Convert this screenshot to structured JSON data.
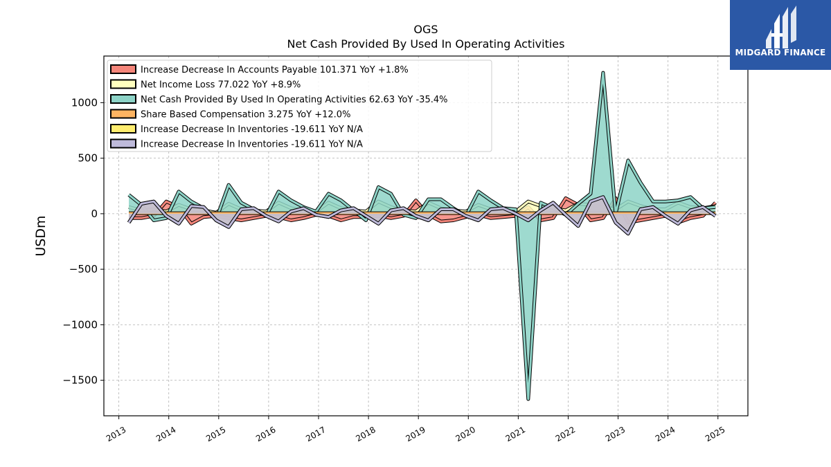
{
  "brand": {
    "name": "MIDGARD FINANCE"
  },
  "chart_data": {
    "type": "area",
    "title": "OGS",
    "subtitle": "Net Cash Provided By Used In Operating Activities",
    "xlabel": "",
    "ylabel": "USDm",
    "xlim": [
      2012.7,
      2025.6
    ],
    "ylim": [
      -1820,
      1420
    ],
    "yticks": [
      1000,
      500,
      0,
      -500,
      -1000,
      -1500
    ],
    "ytick_labels": [
      "1000",
      "500",
      "0",
      "−500",
      "−1000",
      "−1500"
    ],
    "xticks": [
      2013,
      2014,
      2015,
      2016,
      2017,
      2018,
      2019,
      2020,
      2021,
      2022,
      2023,
      2024,
      2025
    ],
    "xtick_labels": [
      "2013",
      "2014",
      "2015",
      "2016",
      "2017",
      "2018",
      "2019",
      "2020",
      "2021",
      "2022",
      "2023",
      "2024",
      "2025"
    ],
    "grid": true,
    "legend_position": "top-left",
    "x": [
      2013.2,
      2013.45,
      2013.7,
      2013.95,
      2014.2,
      2014.45,
      2014.7,
      2014.95,
      2015.2,
      2015.45,
      2015.7,
      2015.95,
      2016.2,
      2016.45,
      2016.7,
      2016.95,
      2017.2,
      2017.45,
      2017.7,
      2017.95,
      2018.2,
      2018.45,
      2018.7,
      2018.95,
      2019.2,
      2019.45,
      2019.7,
      2019.95,
      2020.2,
      2020.45,
      2020.7,
      2020.95,
      2021.2,
      2021.45,
      2021.7,
      2021.95,
      2022.2,
      2022.45,
      2022.7,
      2022.95,
      2023.2,
      2023.45,
      2023.7,
      2023.95,
      2024.2,
      2024.45,
      2024.7,
      2024.95
    ],
    "series": [
      {
        "name": "Increase Decrease In Accounts Payable  101.371 YoY +1.8%",
        "color": "#f4857a",
        "values": [
          -40,
          -40,
          -20,
          110,
          60,
          -90,
          -30,
          -20,
          -40,
          -60,
          -40,
          -20,
          -30,
          -60,
          -40,
          -10,
          -20,
          -60,
          -30,
          -30,
          -20,
          -40,
          -20,
          120,
          -10,
          -70,
          -60,
          -30,
          -10,
          -40,
          -30,
          -20,
          60,
          -60,
          -40,
          140,
          80,
          -60,
          -40,
          140,
          -80,
          -60,
          -40,
          -20,
          -80,
          -40,
          -20,
          100
        ]
      },
      {
        "name": "Net Income Loss  77.022 YoY +8.9%",
        "color": "#ffffbf",
        "values": [
          60,
          30,
          40,
          20,
          80,
          40,
          30,
          10,
          90,
          40,
          30,
          20,
          100,
          50,
          30,
          20,
          100,
          50,
          30,
          20,
          110,
          60,
          30,
          20,
          100,
          50,
          30,
          20,
          80,
          40,
          20,
          20,
          110,
          70,
          50,
          30,
          90,
          80,
          60,
          40,
          110,
          70,
          40,
          40,
          100,
          60,
          50,
          70
        ]
      },
      {
        "name": "Net Cash Provided By Used In Operating Activities  62.63 YoY -35.4%",
        "color": "#8dd3c7",
        "values": [
          170,
          80,
          -60,
          -40,
          200,
          110,
          50,
          -50,
          260,
          100,
          40,
          -20,
          200,
          120,
          60,
          20,
          180,
          120,
          30,
          -60,
          240,
          180,
          -10,
          -40,
          130,
          130,
          50,
          -20,
          200,
          120,
          50,
          40,
          -1670,
          100,
          50,
          -10,
          90,
          180,
          1270,
          0,
          480,
          280,
          110,
          110,
          120,
          150,
          50,
          60
        ]
      },
      {
        "name": "Share Based Compensation  3.275 YoY +12.0%",
        "color": "#fdb462",
        "values": [
          5,
          5,
          5,
          5,
          5,
          5,
          5,
          5,
          5,
          5,
          5,
          5,
          5,
          5,
          5,
          5,
          5,
          5,
          5,
          5,
          5,
          5,
          5,
          5,
          5,
          5,
          5,
          5,
          5,
          5,
          5,
          5,
          5,
          5,
          5,
          5,
          5,
          5,
          5,
          5,
          5,
          5,
          5,
          5,
          5,
          5,
          5,
          5
        ]
      },
      {
        "name": "Increase Decrease In Inventories  -19.611 YoY N/A",
        "color": "#ffed6f",
        "values": [
          -80,
          90,
          110,
          -20,
          -90,
          70,
          60,
          -60,
          -120,
          40,
          50,
          -20,
          -70,
          20,
          50,
          -10,
          -30,
          30,
          50,
          -20,
          -90,
          30,
          50,
          -20,
          -60,
          40,
          40,
          -20,
          -60,
          40,
          50,
          0,
          -60,
          30,
          100,
          -10,
          -110,
          110,
          150,
          -80,
          -180,
          40,
          60,
          -20,
          -90,
          30,
          60,
          -20
        ]
      },
      {
        "name": "Increase Decrease In Inventories  -19.611 YoY N/A",
        "color": "#bebada",
        "values": [
          -80,
          90,
          110,
          -20,
          -90,
          70,
          60,
          -60,
          -120,
          40,
          50,
          -20,
          -70,
          20,
          50,
          -10,
          -30,
          30,
          50,
          -20,
          -90,
          30,
          50,
          -20,
          -60,
          40,
          40,
          -20,
          -60,
          40,
          50,
          0,
          -60,
          30,
          100,
          -10,
          -110,
          110,
          150,
          -80,
          -180,
          40,
          60,
          -20,
          -90,
          30,
          60,
          -20
        ]
      }
    ]
  }
}
